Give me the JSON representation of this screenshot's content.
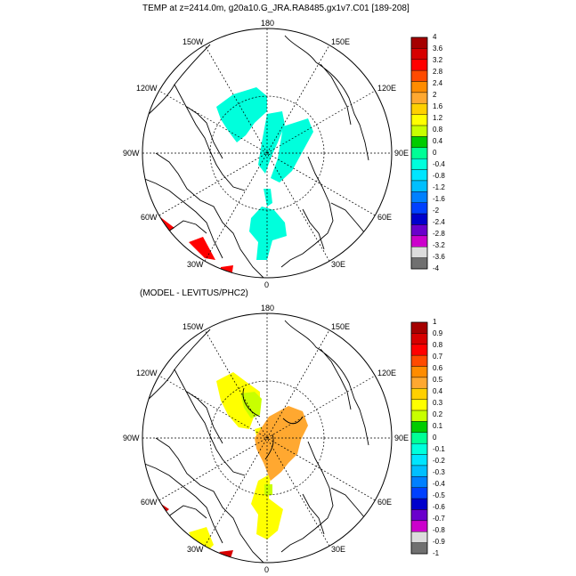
{
  "panel_top": {
    "title": "TEMP at z=2414.0m, g20a10.G_JRA.RA8485.gx1v7.C01 [189-208]",
    "lon_labels": {
      "top": "180",
      "bottom": "0",
      "left": "90W",
      "right": "90E",
      "tl_outer": "150W",
      "tl_inner": "120W",
      "tr_outer": "150E",
      "tr_inner": "120E",
      "bl_upper": "60W",
      "bl_lower": "30W",
      "br_upper": "60E",
      "br_lower": "30E"
    },
    "colorbar": {
      "ticks": [
        "4",
        "3.6",
        "3.2",
        "2.8",
        "2.4",
        "2",
        "1.6",
        "1.2",
        "0.8",
        "0.4",
        "0",
        "-0.4",
        "-0.8",
        "-1.2",
        "-1.6",
        "-2",
        "-2.4",
        "-2.8",
        "-3.2",
        "-3.6",
        "-4"
      ],
      "colors": [
        "#a50000",
        "#d70000",
        "#ff0000",
        "#ff4a00",
        "#ff8c00",
        "#ffa830",
        "#ffd000",
        "#ffff00",
        "#c8ff00",
        "#00cc00",
        "#00ff96",
        "#00ffdc",
        "#00e5ff",
        "#00bfff",
        "#0080ff",
        "#0040ff",
        "#0000cc",
        "#6a00cc",
        "#cc00cc",
        "#dcdcdc",
        "#707070"
      ]
    }
  },
  "panel_bottom": {
    "title": "(MODEL - LEVITUS/PHC2)",
    "lon_labels": {
      "top": "180",
      "bottom": "0",
      "left": "90W",
      "right": "90E",
      "tl_outer": "150W",
      "tl_inner": "120W",
      "tr_outer": "150E",
      "tr_inner": "120E",
      "bl_upper": "60W",
      "bl_lower": "30W",
      "br_upper": "60E",
      "br_lower": "30E"
    },
    "colorbar": {
      "ticks": [
        "1",
        "0.9",
        "0.8",
        "0.7",
        "0.6",
        "0.5",
        "0.4",
        "0.3",
        "0.2",
        "0.1",
        "0",
        "-0.1",
        "-0.2",
        "-0.3",
        "-0.4",
        "-0.5",
        "-0.6",
        "-0.7",
        "-0.8",
        "-0.9",
        "-1"
      ],
      "colors": [
        "#a50000",
        "#d70000",
        "#ff0000",
        "#ff4a00",
        "#ff8c00",
        "#ffa830",
        "#ffd000",
        "#ffff00",
        "#c8ff00",
        "#00cc00",
        "#00ff96",
        "#00ffdc",
        "#00e5ff",
        "#00bfff",
        "#0080ff",
        "#0040ff",
        "#0000cc",
        "#6a00cc",
        "#cc00cc",
        "#dcdcdc",
        "#707070"
      ]
    }
  }
}
